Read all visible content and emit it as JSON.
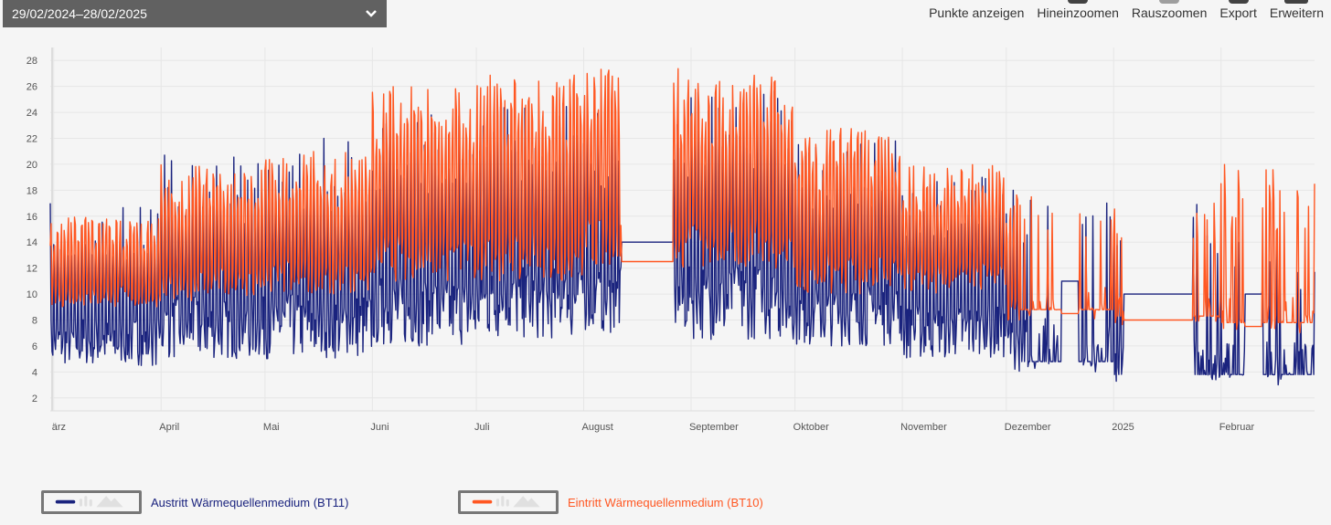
{
  "date_range": {
    "label": "29/02/2024–28/02/2025"
  },
  "toolbar": [
    {
      "label": "Punkte anzeigen",
      "icon": "points-icon"
    },
    {
      "label": "Hineinzoomen",
      "icon": "zoom-in-icon"
    },
    {
      "label": "Rauszoomen",
      "icon": "zoom-out-icon"
    },
    {
      "label": "Export",
      "icon": "export-icon"
    },
    {
      "label": "Erweitern",
      "icon": "expand-icon"
    }
  ],
  "chart_data": {
    "type": "line",
    "title": "",
    "xlabel": "",
    "ylabel": "",
    "ylim": [
      1,
      29
    ],
    "yticks": [
      "2",
      "4",
      "6",
      "8",
      "10",
      "12",
      "14",
      "16",
      "18",
      "20",
      "22",
      "24",
      "26",
      "28"
    ],
    "xticks": [
      "ärz",
      "April",
      "Mai",
      "Juni",
      "Juli",
      "August",
      "September",
      "Oktober",
      "November",
      "Dezember",
      "2025",
      "Februar"
    ],
    "xtick_days": [
      1,
      32,
      62,
      93,
      123,
      154,
      185,
      215,
      246,
      276,
      307,
      338
    ],
    "x_range_days": [
      0,
      365
    ],
    "grid": true,
    "legend_position": "bottom",
    "series": [
      {
        "name": "Austritt Wärmequellenmedium (BT11)",
        "color": "#1a237e",
        "monthly_min": [
          4.5,
          5,
          5,
          6,
          6.5,
          7,
          6.5,
          6,
          5,
          4,
          3,
          3
        ],
        "monthly_max": [
          17,
          21,
          22,
          24,
          25,
          24,
          26,
          22,
          19,
          18,
          17,
          14
        ]
      },
      {
        "name": "Eintritt Wärmequellenmedium (BT10)",
        "color": "#ff5722",
        "monthly_min": [
          9,
          9.5,
          10,
          11,
          11,
          12,
          12,
          10,
          10,
          8,
          7.5,
          7
        ],
        "monthly_max": [
          16,
          20,
          21,
          26,
          27,
          27.5,
          27,
          23,
          20,
          18,
          17,
          20
        ]
      }
    ]
  }
}
